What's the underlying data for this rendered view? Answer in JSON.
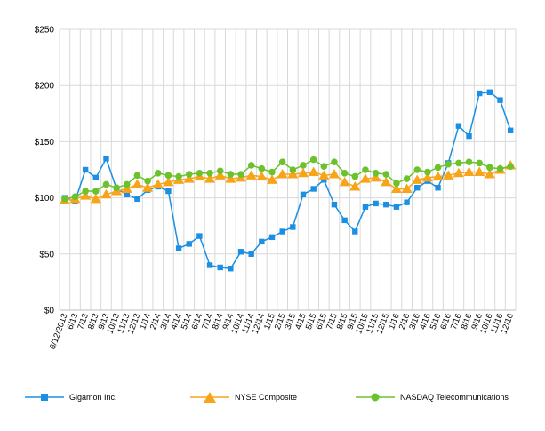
{
  "chart_data": {
    "type": "line",
    "title": "",
    "xlabel": "",
    "ylabel": "",
    "ylim": [
      0,
      250
    ],
    "y_ticks": [
      0,
      50,
      100,
      150,
      200,
      250
    ],
    "y_tick_labels": [
      "$0",
      "$50",
      "$100",
      "$150",
      "$200",
      "$250"
    ],
    "grid": true,
    "legend_position": "bottom",
    "categories": [
      "6/12/2013",
      "6/13",
      "7/13",
      "8/13",
      "9/13",
      "10/13",
      "11/13",
      "12/13",
      "1/14",
      "2/14",
      "3/14",
      "4/14",
      "5/14",
      "6/14",
      "7/14",
      "8/14",
      "9/14",
      "10/14",
      "11/14",
      "12/14",
      "1/15",
      "2/15",
      "3/15",
      "4/15",
      "5/15",
      "6/15",
      "7/15",
      "8/15",
      "9/15",
      "10/15",
      "11/15",
      "12/15",
      "1/16",
      "2/16",
      "3/16",
      "4/16",
      "5/16",
      "6/16",
      "7/16",
      "8/16",
      "9/16",
      "10/16",
      "11/16",
      "12/16"
    ],
    "series": [
      {
        "name": "Gigamon Inc.",
        "color": "#1a8fe3",
        "marker": "square",
        "values": [
          100,
          97,
          125,
          118,
          135,
          108,
          103,
          99,
          107,
          110,
          106,
          55,
          59,
          66,
          40,
          38,
          37,
          52,
          50,
          61,
          65,
          70,
          74,
          103,
          108,
          116,
          94,
          80,
          70,
          92,
          95,
          94,
          92,
          96,
          109,
          115,
          109,
          131,
          164,
          155,
          193,
          194,
          187,
          160
        ]
      },
      {
        "name": "NYSE Composite",
        "color": "#f7a418",
        "marker": "triangle",
        "values": [
          98,
          99,
          102,
          99,
          103,
          106,
          108,
          112,
          109,
          112,
          114,
          116,
          117,
          119,
          117,
          120,
          117,
          118,
          120,
          119,
          116,
          121,
          121,
          122,
          123,
          120,
          121,
          114,
          110,
          117,
          118,
          114,
          108,
          108,
          116,
          118,
          119,
          120,
          122,
          123,
          123,
          121,
          125,
          129
        ]
      },
      {
        "name": "NASDAQ Telecommunications",
        "color": "#6cc22d",
        "marker": "circle",
        "values": [
          99,
          101,
          106,
          106,
          112,
          109,
          112,
          120,
          115,
          122,
          120,
          119,
          121,
          122,
          122,
          124,
          121,
          121,
          129,
          126,
          123,
          132,
          125,
          129,
          134,
          128,
          132,
          122,
          119,
          125,
          122,
          121,
          113,
          117,
          125,
          123,
          127,
          130,
          131,
          132,
          131,
          127,
          126,
          128
        ]
      }
    ]
  }
}
